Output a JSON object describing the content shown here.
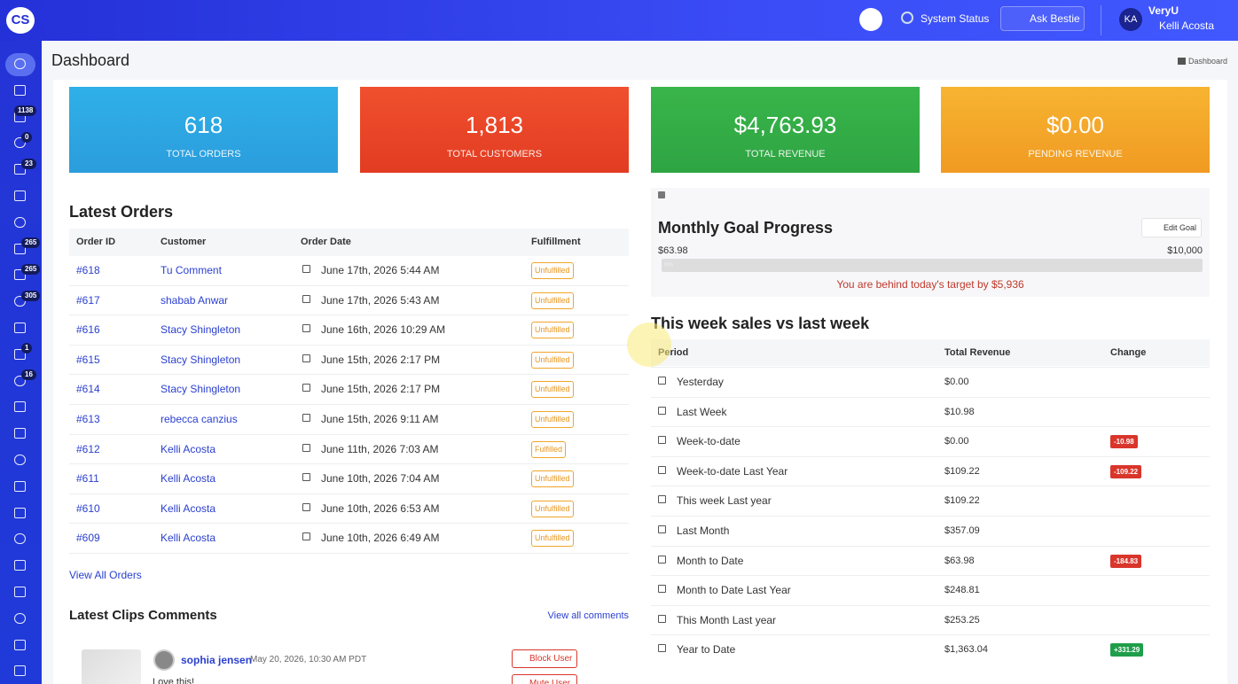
{
  "header": {
    "logo": "CS",
    "system_status": "System Status",
    "ask": "Ask Bestie",
    "avatar": "KA",
    "org": "VeryU",
    "user": "Kelli Acosta"
  },
  "sidebar": {
    "badges": [
      "1138",
      "0",
      "23",
      "265",
      "265",
      "305",
      "1",
      "16"
    ]
  },
  "page": {
    "title": "Dashboard",
    "breadcrumb": "Dashboard"
  },
  "stats": [
    {
      "value": "618",
      "label": "TOTAL ORDERS"
    },
    {
      "value": "1,813",
      "label": "TOTAL CUSTOMERS"
    },
    {
      "value": "$4,763.93",
      "label": "TOTAL REVENUE"
    },
    {
      "value": "$0.00",
      "label": "PENDING REVENUE"
    }
  ],
  "orders": {
    "title": "Latest Orders",
    "columns": [
      "Order ID",
      "Customer",
      "Order Date",
      "Fulfillment"
    ],
    "rows": [
      [
        "#618",
        "Tu Comment",
        "June 17th, 2026 5:44 AM",
        "Unfulfilled"
      ],
      [
        "#617",
        "shabab Anwar",
        "June 17th, 2026 5:43 AM",
        "Unfulfilled"
      ],
      [
        "#616",
        "Stacy Shingleton",
        "June 16th, 2026 10:29 AM",
        "Unfulfilled"
      ],
      [
        "#615",
        "Stacy Shingleton",
        "June 15th, 2026 2:17 PM",
        "Unfulfilled"
      ],
      [
        "#614",
        "Stacy Shingleton",
        "June 15th, 2026 2:17 PM",
        "Unfulfilled"
      ],
      [
        "#613",
        "rebecca canzius",
        "June 15th, 2026 9:11 AM",
        "Unfulfilled"
      ],
      [
        "#612",
        "Kelli Acosta",
        "June 11th, 2026 7:03 AM",
        "Fulfilled"
      ],
      [
        "#611",
        "Kelli Acosta",
        "June 10th, 2026 7:04 AM",
        "Unfulfilled"
      ],
      [
        "#610",
        "Kelli Acosta",
        "June 10th, 2026 6:53 AM",
        "Unfulfilled"
      ],
      [
        "#609",
        "Kelli Acosta",
        "June 10th, 2026 6:49 AM",
        "Unfulfilled"
      ]
    ],
    "link": "View All Orders"
  },
  "comments": {
    "title": "Latest Clips Comments",
    "link": "View all comments",
    "items": [
      {
        "user": "sophia jensen",
        "date": "May 20, 2026, 10:30 AM PDT",
        "text": "Love this!",
        "block": "Block User",
        "mute": "Mute User"
      }
    ]
  },
  "goal": {
    "title": "Monthly Goal Progress",
    "edit": "Edit Goal",
    "current": "$63.98",
    "target": "$10,000",
    "progress": "0%",
    "message": "You are behind today's target by $5,936"
  },
  "weekly": {
    "title": "This week sales vs last week",
    "columns": [
      "Period",
      "Total Revenue",
      "Change"
    ],
    "rows": [
      [
        "Yesterday",
        "$0.00",
        null
      ],
      [
        "Last Week",
        "$10.98",
        null
      ],
      [
        "Week-to-date",
        "$0.00",
        "-10.98"
      ],
      [
        "Week-to-date Last Year",
        "$109.22",
        "-109.22"
      ],
      [
        "This week Last year",
        "$109.22",
        null
      ],
      [
        "Last Month",
        "$357.09",
        null
      ],
      [
        "Month to Date",
        "$63.98",
        "-184.83"
      ],
      [
        "Month to Date Last Year",
        "$248.81",
        null
      ],
      [
        "This Month Last year",
        "$253.25",
        null
      ],
      [
        "Year to Date",
        "$1,363.04",
        "+331.29"
      ]
    ]
  }
}
